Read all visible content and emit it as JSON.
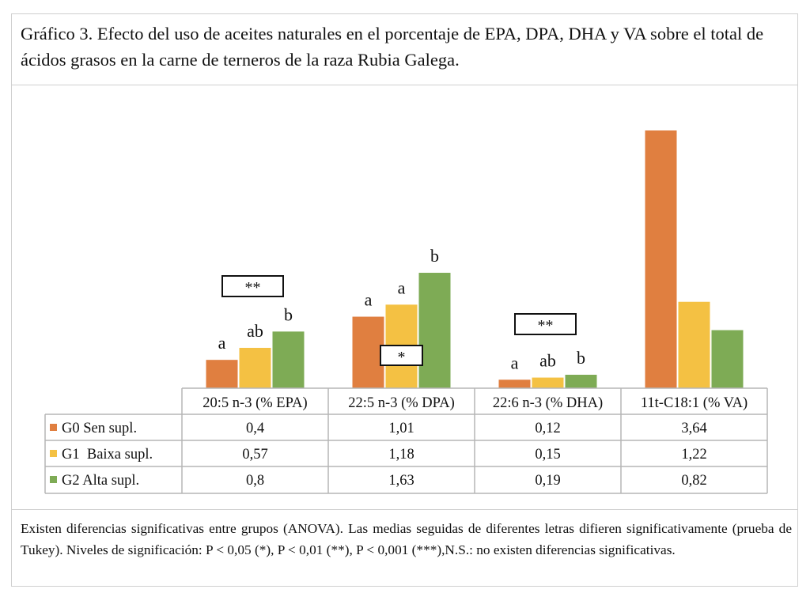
{
  "title": "Gráfico 3. Efecto del uso de aceites naturales en el porcentaje de EPA, DPA, DHA y VA sobre el total de ácidos grasos en la carne de terneros de la raza Rubia Galega.",
  "footer": "Existen diferencias significativas entre grupos (ANOVA). Las medias seguidas de diferentes letras difieren significativamente (prueba de Tukey). Niveles de significación: P < 0,05 (*), P < 0,01 (**), P < 0,001 (***),N.S.: no existen diferencias significativas.",
  "chart_data": {
    "type": "bar",
    "title": "Gráfico 3. Efecto del uso de aceites naturales en el porcentaje de EPA, DPA, DHA y VA sobre el total de ácidos grasos en la carne de terneros de la raza Rubia Galega.",
    "categories": [
      "20:5 n-3 (% EPA)",
      "22:5 n-3 (% DPA)",
      "22:6 n-3 (% DHA)",
      "11t-C18:1 (% VA)"
    ],
    "series": [
      {
        "name": "G0 Sen supl.",
        "color": "#E07F40",
        "values": [
          0.4,
          1.01,
          0.12,
          3.64
        ],
        "labels": [
          "0,4",
          "1,01",
          "0,12",
          "3,64"
        ]
      },
      {
        "name": "G1  Baixa supl.",
        "color": "#F4C143",
        "values": [
          0.57,
          1.18,
          0.15,
          1.22
        ],
        "labels": [
          "0,57",
          "1,18",
          "0,15",
          "1,22"
        ]
      },
      {
        "name": "G2 Alta supl.",
        "color": "#7EAB55",
        "values": [
          0.8,
          1.63,
          0.19,
          0.82
        ],
        "labels": [
          "0,8",
          "1,63",
          "0,19",
          "0,82"
        ]
      }
    ],
    "letters": [
      [
        "a",
        "ab",
        "b"
      ],
      [
        "a",
        "a",
        "b"
      ],
      [
        "a",
        "ab",
        "b"
      ],
      [
        "",
        "",
        ""
      ]
    ],
    "significance": [
      "**",
      "*",
      "**",
      ""
    ],
    "ylim": [
      0,
      3.64
    ],
    "xlabel": "",
    "ylabel": "",
    "grid": false,
    "legend_placement": "data-table-left",
    "data_table": true
  }
}
